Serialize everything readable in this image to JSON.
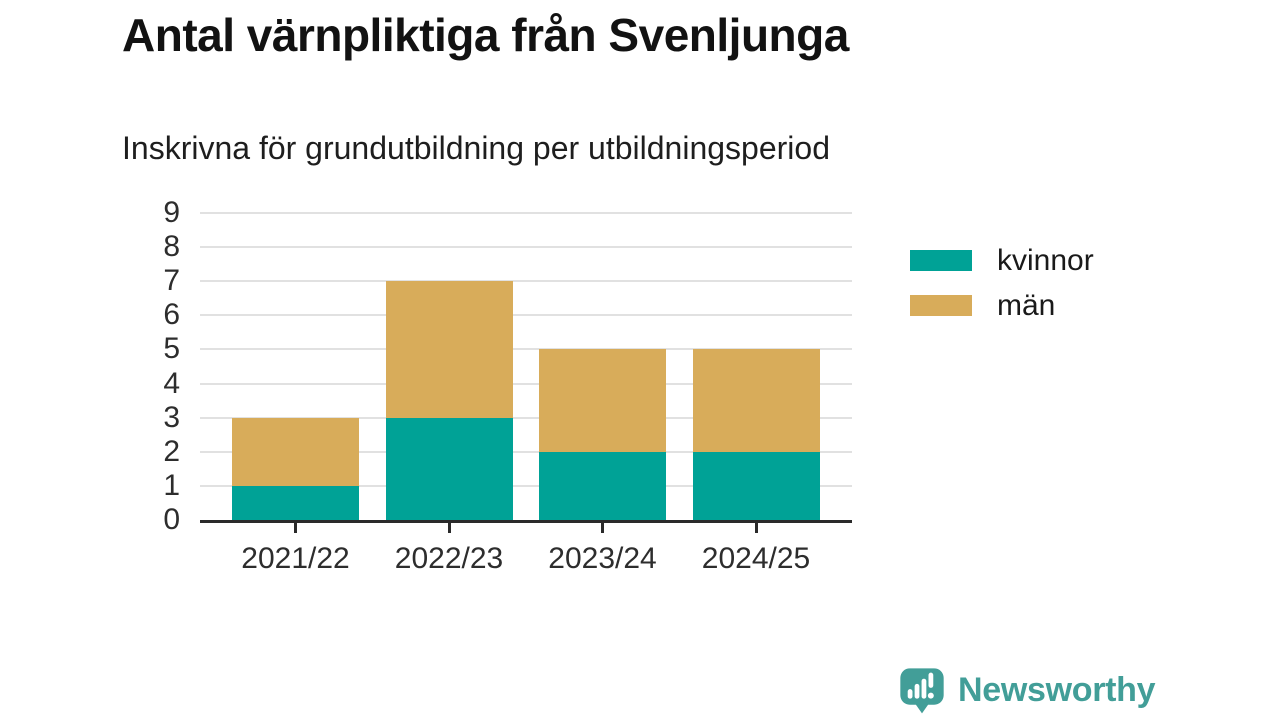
{
  "header": {
    "title": "Antal värnpliktiga från Svenljunga",
    "subtitle": "Inskrivna för grundutbildning per utbildningsperiod"
  },
  "chart_data": {
    "type": "bar",
    "stacked": true,
    "title": "Antal värnpliktiga från Svenljunga",
    "subtitle": "Inskrivna för grundutbildning per utbildningsperiod",
    "categories": [
      "2021/22",
      "2022/23",
      "2023/24",
      "2024/25"
    ],
    "series": [
      {
        "name": "kvinnor",
        "color": "#00A296",
        "values": [
          1,
          3,
          2,
          2
        ]
      },
      {
        "name": "män",
        "color": "#D8AC5A",
        "values": [
          2,
          4,
          3,
          3
        ]
      }
    ],
    "totals": [
      3,
      7,
      5,
      5
    ],
    "xlabel": "",
    "ylabel": "",
    "ylim": [
      0,
      9
    ],
    "yticks": [
      0,
      1,
      2,
      3,
      4,
      5,
      6,
      7,
      8,
      9
    ],
    "grid": true,
    "legend_position": "right",
    "axis_color": "#2a2a2a",
    "gridline_color": "#e1e1e1"
  },
  "footer": {
    "brand": "Newsworthy",
    "brand_color": "#429E98",
    "icon": "speech-bubble-bar-chart-icon"
  }
}
